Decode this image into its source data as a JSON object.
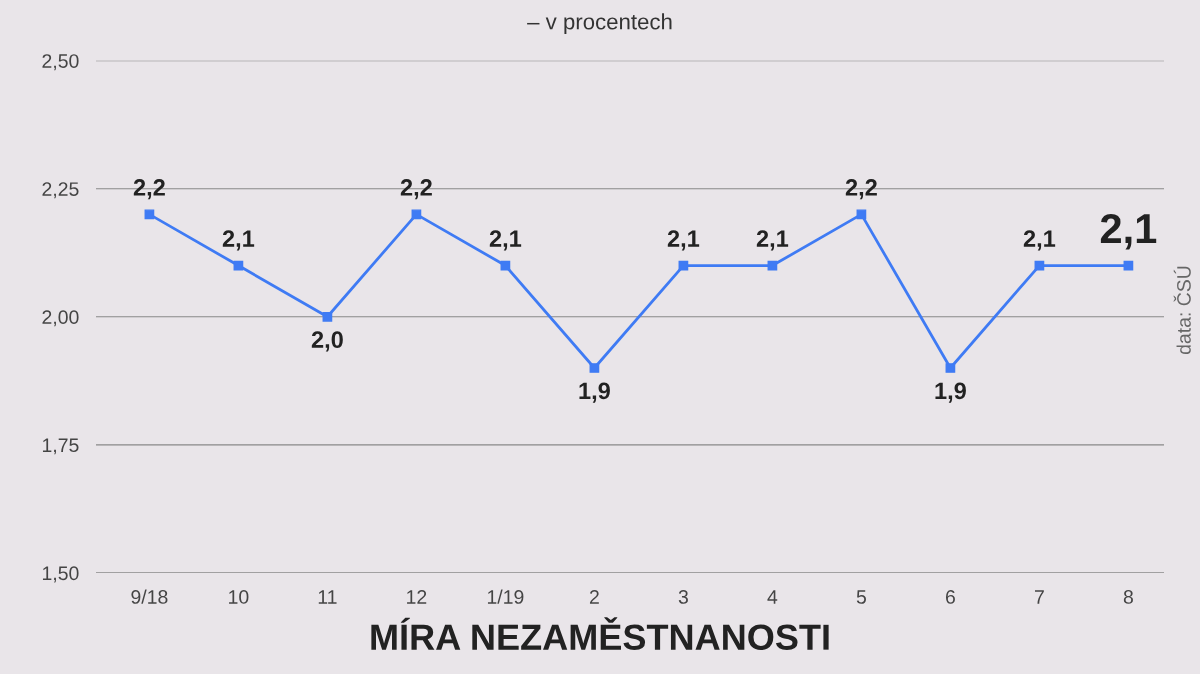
{
  "chart_data": {
    "type": "line",
    "title": "MÍRA NEZAMĚSTNANOSTI",
    "subtitle": "– v procentech",
    "annotations": [
      "data: ČSÚ"
    ],
    "categories": [
      "9/18",
      "10",
      "11",
      "12",
      "1/19",
      "2",
      "3",
      "4",
      "5",
      "6",
      "7",
      "8"
    ],
    "series": [
      {
        "color": "#3f7bf4",
        "values": [
          2.2,
          2.1,
          2.0,
          2.2,
          2.1,
          1.9,
          2.1,
          2.1,
          2.2,
          1.9,
          2.1,
          2.1
        ],
        "value_labels": [
          "2,2",
          "2,1",
          "2,0",
          "2,2",
          "2,1",
          "1,9",
          "2,1",
          "2,1",
          "2,2",
          "1,9",
          "2,1",
          "2,1"
        ]
      }
    ],
    "ylim": [
      1.5,
      2.5
    ],
    "yticks": [
      {
        "value": 1.5,
        "label": "1,50"
      },
      {
        "value": 1.75,
        "label": "1,75"
      },
      {
        "value": 2.0,
        "label": "2,00"
      },
      {
        "value": 2.25,
        "label": "2,25"
      },
      {
        "value": 2.5,
        "label": "2,50"
      }
    ],
    "grid": "y",
    "marker": "square",
    "line_style": "solid",
    "legend": false
  }
}
